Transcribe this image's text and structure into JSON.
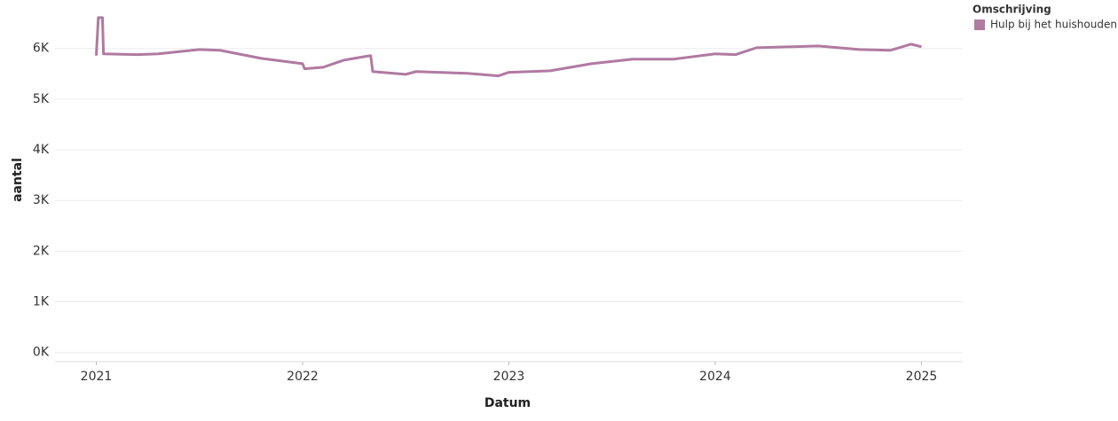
{
  "chart_data": {
    "type": "line",
    "x_label": "Datum",
    "y_label": "aantal",
    "legend_title": "Omschrijving",
    "legend_position": "right",
    "grid": true,
    "xlim": [
      2020.8,
      2025.2
    ],
    "xticks": [
      2021,
      2022,
      2023,
      2024,
      2025
    ],
    "ylim": [
      -180,
      6870
    ],
    "yticks": [
      {
        "value": 0,
        "label": "0K"
      },
      {
        "value": 1000,
        "label": "1K"
      },
      {
        "value": 2000,
        "label": "2K"
      },
      {
        "value": 3000,
        "label": "3K"
      },
      {
        "value": 4000,
        "label": "4K"
      },
      {
        "value": 5000,
        "label": "5K"
      },
      {
        "value": 6000,
        "label": "6K"
      }
    ],
    "x": [
      2021.0,
      2021.01,
      2021.03,
      2021.035,
      2021.2,
      2021.3,
      2021.5,
      2021.6,
      2021.8,
      2022.0,
      2022.01,
      2022.1,
      2022.2,
      2022.3,
      2022.33,
      2022.34,
      2022.5,
      2022.55,
      2022.8,
      2022.95,
      2023.0,
      2023.2,
      2023.4,
      2023.6,
      2023.8,
      2024.0,
      2024.1,
      2024.2,
      2024.5,
      2024.7,
      2024.85,
      2024.95,
      2025.0
    ],
    "series": [
      {
        "name": "Hulp bij het huishouden",
        "color": "#b07aa1",
        "values": [
          5860,
          6610,
          6610,
          5895,
          5880,
          5895,
          5980,
          5965,
          5805,
          5700,
          5600,
          5630,
          5770,
          5840,
          5860,
          5545,
          5490,
          5545,
          5510,
          5460,
          5530,
          5560,
          5700,
          5790,
          5790,
          5895,
          5880,
          6015,
          6050,
          5980,
          5965,
          6085,
          6035
        ]
      }
    ]
  }
}
